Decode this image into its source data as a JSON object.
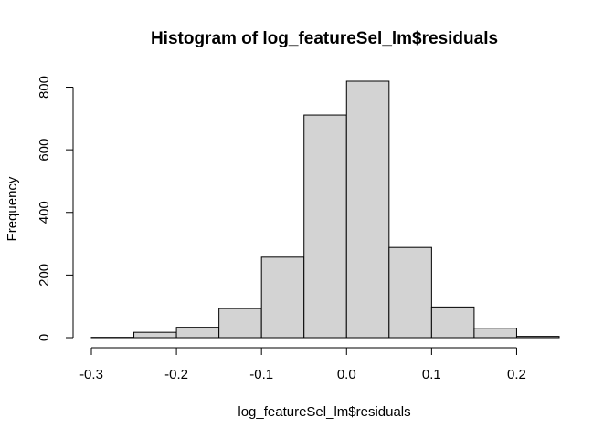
{
  "chart_data": {
    "type": "bar",
    "title": "Histogram of log_featureSel_lm$residuals",
    "xlabel": "log_featureSel_lm$residuals",
    "ylabel": "Frequency",
    "bins": [
      {
        "from": -0.3,
        "to": -0.25,
        "count": 1
      },
      {
        "from": -0.25,
        "to": -0.2,
        "count": 17
      },
      {
        "from": -0.2,
        "to": -0.15,
        "count": 33
      },
      {
        "from": -0.15,
        "to": -0.1,
        "count": 93
      },
      {
        "from": -0.1,
        "to": -0.05,
        "count": 257
      },
      {
        "from": -0.05,
        "to": 0.0,
        "count": 711
      },
      {
        "from": 0.0,
        "to": 0.05,
        "count": 819
      },
      {
        "from": 0.05,
        "to": 0.1,
        "count": 288
      },
      {
        "from": 0.1,
        "to": 0.15,
        "count": 98
      },
      {
        "from": 0.15,
        "to": 0.2,
        "count": 30
      },
      {
        "from": 0.2,
        "to": 0.25,
        "count": 4
      }
    ],
    "xlim": [
      -0.3,
      0.25
    ],
    "ylim": [
      0,
      819
    ],
    "x_ticks": [
      "-0.3",
      "-0.2",
      "-0.1",
      "0.0",
      "0.1",
      "0.2"
    ],
    "y_ticks": [
      "0",
      "200",
      "400",
      "600",
      "800"
    ],
    "grid": false,
    "bar_color": "#d3d3d3"
  }
}
